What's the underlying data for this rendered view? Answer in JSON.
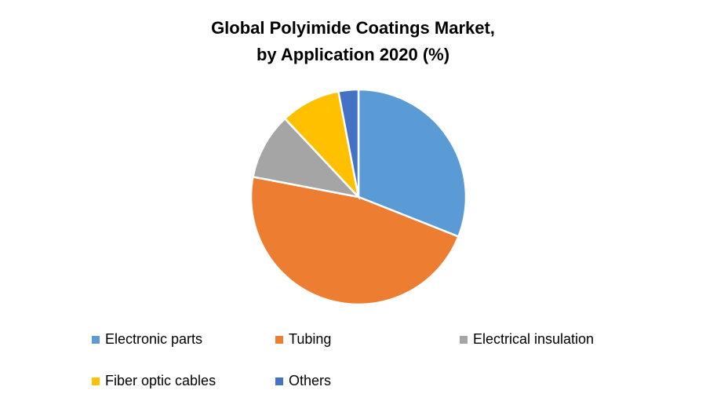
{
  "chart_data": {
    "type": "pie",
    "title": [
      "Global Polyimide Coatings Market,",
      "by Application 2020 (%)"
    ],
    "categories": [
      "Electronic parts",
      "Tubing",
      "Electrical insulation",
      "Fiber optic cables",
      "Others"
    ],
    "values": [
      31,
      47,
      10,
      9,
      3
    ],
    "colors": [
      "#5b9bd5",
      "#ed7d31",
      "#a5a5a5",
      "#ffc000",
      "#4472c4"
    ],
    "legend": "bottom"
  }
}
